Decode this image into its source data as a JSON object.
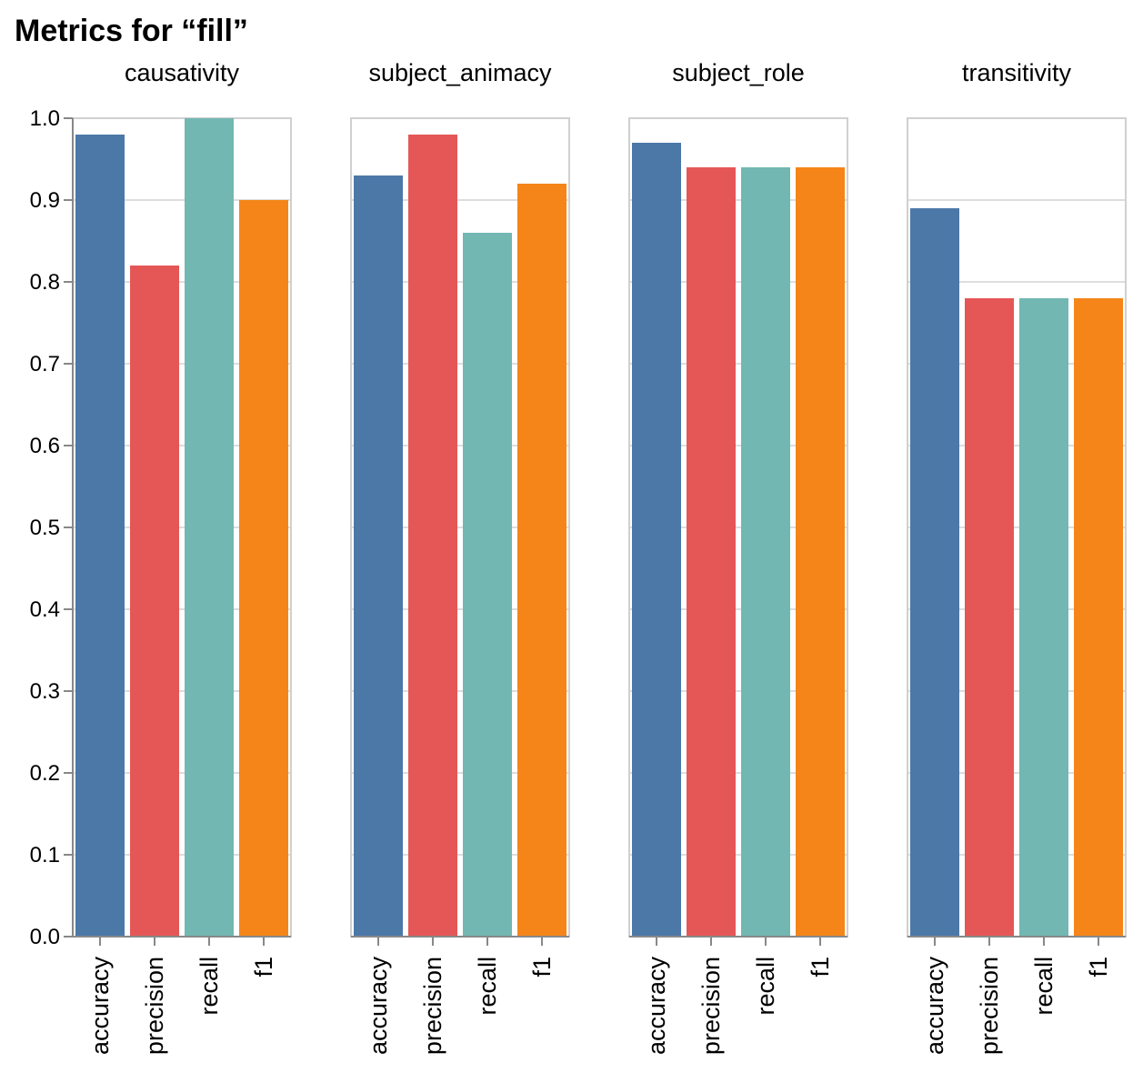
{
  "chart_data": {
    "type": "bar",
    "title": "Metrics for “fill”",
    "facets": [
      "causativity",
      "subject_animacy",
      "subject_role",
      "transitivity"
    ],
    "categories": [
      "accuracy",
      "precision",
      "recall",
      "f1"
    ],
    "values": [
      [
        0.98,
        0.82,
        1.0,
        0.9
      ],
      [
        0.93,
        0.98,
        0.86,
        0.92
      ],
      [
        0.97,
        0.94,
        0.94,
        0.94
      ],
      [
        0.89,
        0.78,
        0.78,
        0.78
      ]
    ],
    "ylim": [
      0,
      1
    ],
    "yticks": [
      "0.0",
      "0.1",
      "0.2",
      "0.3",
      "0.4",
      "0.5",
      "0.6",
      "0.7",
      "0.8",
      "0.9",
      "1.0"
    ],
    "colors": {
      "accuracy": "#4c78a8",
      "precision": "#e45756",
      "recall": "#72b7b2",
      "f1": "#f58518"
    },
    "grid": true,
    "legend": "none"
  }
}
